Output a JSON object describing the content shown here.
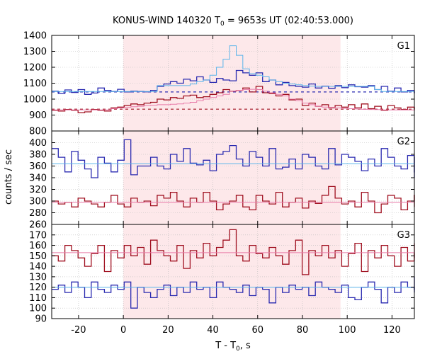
{
  "chart_data": {
    "type": "line",
    "title_main": "KONUS-WIND 140320 T",
    "title_sub": "0",
    "title_rest": " = 9653s UT (02:40:53.000)",
    "xlabel_main": "T - T",
    "xlabel_sub": "0",
    "xlabel_rest": ", s",
    "ylabel": "counts / sec",
    "xlim": [
      -32,
      130
    ],
    "xticks": [
      -20,
      0,
      20,
      40,
      60,
      80,
      100,
      120
    ],
    "xtick_labels": [
      "-20",
      "0",
      "20",
      "40",
      "60",
      "80",
      "100",
      "120"
    ],
    "highlight": {
      "x0": 0,
      "x1": 97,
      "color": "#fde8ea"
    },
    "colors": {
      "blue": "#2a2ab0",
      "red": "#a01020",
      "light_blue": "#5ab4ea",
      "pink": "#e87aa8"
    },
    "panels": [
      {
        "name": "G1",
        "ylim": [
          800,
          1400
        ],
        "yticks": [
          900,
          1000,
          1100,
          1200,
          1300,
          1400
        ],
        "ytick_labels": [
          "900",
          "1000",
          "1100",
          "1200",
          "1300",
          "1400"
        ],
        "bottom_tick_label": "800",
        "bin_start": -32,
        "bin_width": 2.944,
        "series": [
          {
            "name": "",
            "color_key": "blue",
            "values": [
              1050,
              1035,
              1058,
              1042,
              1060,
              1030,
              1038,
              1070,
              1055,
              1048,
              1062,
              1045,
              1050,
              1048,
              1046,
              1055,
              1080,
              1095,
              1110,
              1100,
              1125,
              1115,
              1140,
              1120,
              1105,
              1130,
              1120,
              1115,
              1180,
              1165,
              1150,
              1165,
              1110,
              1120,
              1090,
              1105,
              1085,
              1080,
              1075,
              1095,
              1070,
              1082,
              1068,
              1085,
              1072,
              1090,
              1078,
              1075,
              1085,
              1060,
              1080,
              1050,
              1070,
              1045,
              1055,
              1040,
              1045,
              1050,
              1040,
              1042
            ]
          },
          {
            "name": "",
            "color_key": "red",
            "values": [
              930,
              925,
              935,
              930,
              915,
              920,
              935,
              930,
              925,
              945,
              950,
              960,
              970,
              965,
              975,
              980,
              1000,
              995,
              1010,
              1005,
              1020,
              1025,
              1010,
              1015,
              1030,
              1040,
              1060,
              1050,
              1055,
              1070,
              1045,
              1080,
              1040,
              1035,
              1020,
              1030,
              995,
              1000,
              960,
              975,
              955,
              965,
              945,
              960,
              950,
              965,
              945,
              970,
              940,
              955,
              930,
              960,
              945,
              935,
              950,
              940,
              945,
              930,
              950,
              940
            ]
          },
          {
            "name": "",
            "color_key": "light_blue",
            "values": [
              1048,
              1048,
              1048,
              1048,
              1048,
              1048,
              1048,
              1048,
              1048,
              1048,
              1048,
              1048,
              1048,
              1048,
              1048,
              1048,
              1085,
              1085,
              1085,
              1085,
              1085,
              1095,
              1110,
              1120,
              1150,
              1200,
              1250,
              1335,
              1275,
              1190,
              1160,
              1150,
              1140,
              1120,
              1110,
              1100,
              1095,
              1090,
              1085,
              1082,
              1080,
              1080,
              1080,
              1080,
              1080,
              1080,
              1080,
              1080,
              1080,
              1060,
              1048,
              1048,
              1048,
              1048,
              1048,
              1048,
              1048,
              1048,
              1048,
              1048
            ]
          },
          {
            "name": "",
            "color_key": "pink",
            "values": [
              932,
              932,
              932,
              932,
              932,
              932,
              932,
              932,
              932,
              940,
              945,
              948,
              952,
              955,
              960,
              962,
              965,
              965,
              968,
              970,
              975,
              980,
              990,
              1000,
              1010,
              1020,
              1030,
              1050,
              1055,
              1060,
              1062,
              1060,
              1050,
              1040,
              1030,
              1020,
              1000,
              990,
              975,
              965,
              955,
              950,
              948,
              945,
              942,
              940,
              938,
              936,
              935,
              934,
              932,
              932,
              932,
              932,
              932,
              932,
              932,
              932,
              932,
              932
            ]
          }
        ],
        "bg_levels": [
          {
            "color_key": "blue",
            "value": 1045
          },
          {
            "color_key": "red",
            "value": 937
          }
        ]
      },
      {
        "name": "G2",
        "ylim": [
          260,
          420
        ],
        "yticks": [
          280,
          300,
          320,
          340,
          360,
          380,
          400
        ],
        "ytick_labels": [
          "280",
          "300",
          "320",
          "340",
          "360",
          "380",
          "400"
        ],
        "bottom_tick_label": "260",
        "bin_start": -32,
        "bin_width": 2.944,
        "series": [
          {
            "name": "",
            "color_key": "blue",
            "values": [
              390,
              375,
              350,
              385,
              370,
              355,
              340,
              375,
              365,
              350,
              370,
              405,
              345,
              360,
              360,
              375,
              360,
              355,
              380,
              368,
              390,
              365,
              362,
              370,
              352,
              380,
              385,
              395,
              372,
              360,
              385,
              375,
              360,
              390,
              355,
              358,
              372,
              355,
              380,
              375,
              360,
              355,
              390,
              362,
              380,
              375,
              368,
              352,
              372,
              360,
              390,
              375,
              360,
              355,
              378,
              350,
              365,
              375,
              340,
              365
            ]
          },
          {
            "name": "",
            "color_key": "red",
            "values": [
              300,
              295,
              298,
              290,
              305,
              300,
              295,
              290,
              298,
              310,
              295,
              290,
              305,
              298,
              300,
              292,
              310,
              305,
              315,
              300,
              290,
              305,
              298,
              315,
              300,
              285,
              295,
              300,
              310,
              290,
              285,
              310,
              300,
              295,
              315,
              290,
              298,
              305,
              288,
              300,
              296,
              310,
              325,
              305,
              295,
              300,
              290,
              315,
              300,
              280,
              295,
              310,
              305,
              285,
              300,
              310,
              292,
              295,
              310,
              290
            ]
          },
          {
            "name": "",
            "color_key": "light_blue",
            "values": [
              364,
              364,
              364,
              364,
              364,
              364,
              364,
              364,
              364,
              364,
              364,
              364,
              364,
              364,
              364,
              364,
              364,
              364,
              364,
              364,
              364,
              364,
              364,
              364,
              364,
              364,
              364,
              364,
              364,
              364,
              364,
              364,
              364,
              364,
              364,
              364,
              364,
              364,
              364,
              364,
              364,
              364,
              364,
              364,
              364,
              364,
              364,
              364,
              364,
              364,
              364,
              364,
              364,
              364,
              364,
              364,
              364,
              364,
              364,
              364
            ]
          },
          {
            "name": "",
            "color_key": "pink",
            "values": [
              298,
              298,
              298,
              298,
              298,
              298,
              298,
              298,
              298,
              298,
              298,
              298,
              298,
              298,
              298,
              298,
              298,
              298,
              298,
              298,
              298,
              298,
              298,
              298,
              298,
              298,
              298,
              298,
              298,
              298,
              298,
              298,
              298,
              298,
              298,
              298,
              298,
              298,
              298,
              298,
              298,
              298,
              298,
              298,
              298,
              298,
              298,
              298,
              298,
              298,
              298,
              298,
              298,
              298,
              298,
              298,
              298,
              298,
              298,
              298
            ]
          }
        ],
        "bg_levels": []
      },
      {
        "name": "G3",
        "ylim": [
          90,
          180
        ],
        "yticks": [
          90,
          100,
          110,
          120,
          130,
          140,
          150,
          160,
          170
        ],
        "ytick_labels": [
          "90",
          "100",
          "110",
          "120",
          "130",
          "140",
          "150",
          "160",
          "170"
        ],
        "bottom_tick_label": "",
        "bin_start": -32,
        "bin_width": 2.944,
        "series": [
          {
            "name": "",
            "color_key": "red",
            "values": [
              150,
              145,
              160,
              155,
              148,
              140,
              152,
              160,
              135,
              155,
              148,
              160,
              150,
              158,
              142,
              165,
              155,
              150,
              145,
              160,
              138,
              155,
              148,
              162,
              150,
              158,
              165,
              175,
              150,
              145,
              160,
              152,
              148,
              158,
              150,
              142,
              155,
              165,
              132,
              155,
              150,
              160,
              148,
              155,
              140,
              152,
              162,
              135,
              155,
              148,
              160,
              150,
              140,
              158,
              145,
              152,
              162,
              148,
              155,
              160
            ]
          },
          {
            "name": "",
            "color_key": "blue",
            "values": [
              118,
              122,
              115,
              125,
              120,
              110,
              125,
              118,
              115,
              122,
              118,
              125,
              100,
              120,
              115,
              110,
              118,
              122,
              112,
              120,
              115,
              125,
              118,
              120,
              110,
              125,
              120,
              118,
              115,
              122,
              112,
              120,
              118,
              105,
              120,
              115,
              122,
              118,
              120,
              112,
              125,
              120,
              118,
              115,
              122,
              110,
              108,
              120,
              125,
              118,
              105,
              120,
              115,
              125,
              120,
              118,
              122,
              115,
              125,
              130
            ]
          },
          {
            "name": "",
            "color_key": "light_blue",
            "values": [
              120,
              120,
              120,
              120,
              120,
              120,
              120,
              120,
              120,
              120,
              120,
              120,
              120,
              120,
              120,
              120,
              120,
              120,
              120,
              120,
              120,
              120,
              120,
              120,
              120,
              120,
              120,
              120,
              120,
              120,
              120,
              120,
              120,
              120,
              120,
              120,
              120,
              120,
              120,
              120,
              120,
              120,
              120,
              120,
              120,
              120,
              120,
              120,
              120,
              120,
              120,
              120,
              120,
              120,
              120,
              120,
              120,
              120,
              120,
              120
            ]
          },
          {
            "name": "",
            "color_key": "pink",
            "values": [
              153,
              153,
              153,
              153,
              153,
              153,
              153,
              153,
              153,
              153,
              153,
              153,
              153,
              153,
              153,
              153,
              153,
              153,
              153,
              153,
              153,
              153,
              153,
              153,
              153,
              153,
              153,
              153,
              153,
              153,
              153,
              153,
              153,
              153,
              153,
              153,
              153,
              153,
              153,
              153,
              153,
              153,
              153,
              153,
              153,
              153,
              153,
              153,
              153,
              153,
              153,
              153,
              153,
              153,
              153,
              153,
              153,
              153,
              153,
              153
            ]
          }
        ],
        "bg_levels": []
      }
    ]
  }
}
